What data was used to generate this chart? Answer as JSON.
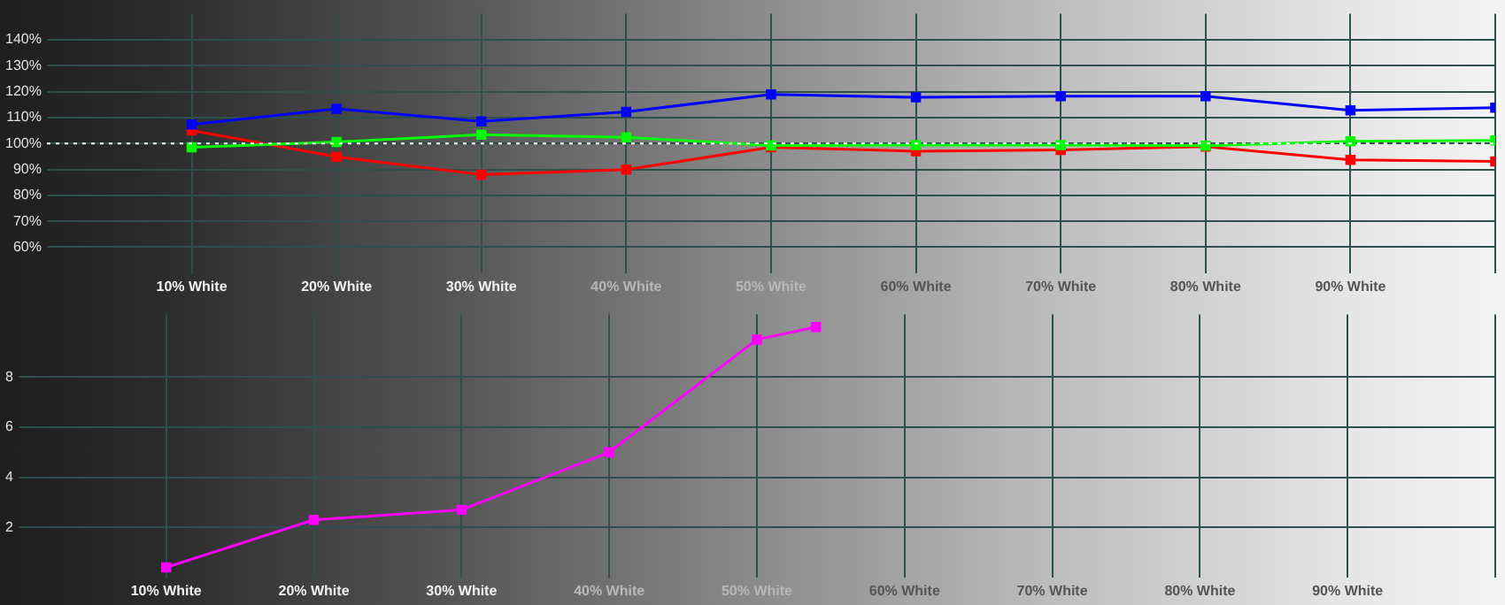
{
  "chart_data": [
    {
      "type": "line",
      "x": [
        10,
        20,
        30,
        40,
        50,
        60,
        70,
        80,
        90,
        100
      ],
      "xlim": [
        0,
        100
      ],
      "xticks": [
        {
          "value": 10,
          "label": "10% White"
        },
        {
          "value": 20,
          "label": "20% White"
        },
        {
          "value": 30,
          "label": "30% White"
        },
        {
          "value": 40,
          "label": "40% White"
        },
        {
          "value": 50,
          "label": "50% White"
        },
        {
          "value": 60,
          "label": "60% White"
        },
        {
          "value": 70,
          "label": "70% White"
        },
        {
          "value": 80,
          "label": "80% White"
        },
        {
          "value": 90,
          "label": "90% White"
        },
        {
          "value": 100,
          "label": null
        }
      ],
      "ylim": [
        50,
        150
      ],
      "yticks": [
        {
          "value": 60,
          "label": "60%"
        },
        {
          "value": 70,
          "label": "70%"
        },
        {
          "value": 80,
          "label": "80%"
        },
        {
          "value": 90,
          "label": "90%"
        },
        {
          "value": 100,
          "label": "100%"
        },
        {
          "value": 110,
          "label": "110%"
        },
        {
          "value": 120,
          "label": "120%"
        },
        {
          "value": 130,
          "label": "130%"
        },
        {
          "value": 140,
          "label": "140%"
        }
      ],
      "series": [
        {
          "color": "#00ff00",
          "values": [
            98.5,
            100.6,
            103.4,
            102.4,
            99.2,
            99.4,
            99.4,
            99.1,
            100.8,
            101.2
          ]
        },
        {
          "color": "#0000ff",
          "values": [
            107.3,
            113.4,
            108.5,
            112.2,
            118.9,
            117.8,
            118.2,
            118.2,
            112.8,
            113.8
          ]
        },
        {
          "color": "#ff0000",
          "values": [
            105,
            94.9,
            88,
            89.9,
            98.5,
            97,
            97.5,
            98.8,
            93.7,
            93.1
          ]
        }
      ],
      "ref_lines": [
        {
          "axis": "y",
          "value": 100,
          "color": "#ffffff",
          "line_style": "dotted"
        }
      ],
      "grid": true,
      "marker": "square",
      "legend": false
    },
    {
      "type": "line",
      "xlim": [
        0,
        100
      ],
      "xticks": [
        {
          "value": 10,
          "label": "10% White"
        },
        {
          "value": 20,
          "label": "20% White"
        },
        {
          "value": 30,
          "label": "30% White"
        },
        {
          "value": 40,
          "label": "40% White"
        },
        {
          "value": 50,
          "label": "50% White"
        },
        {
          "value": 60,
          "label": "60% White"
        },
        {
          "value": 70,
          "label": "70% White"
        },
        {
          "value": 80,
          "label": "80% White"
        },
        {
          "value": 90,
          "label": "90% White"
        },
        {
          "value": 100,
          "label": null
        }
      ],
      "ylim": [
        0,
        10.5
      ],
      "yticks": [
        2,
        4,
        6,
        8
      ],
      "series": [
        {
          "color": "#ff00ff",
          "x": [
            10,
            20,
            30,
            40,
            50,
            54
          ],
          "values": [
            0.4,
            2.3,
            2.7,
            5.0,
            9.5,
            10.0
          ]
        }
      ],
      "grid": true,
      "marker": "square",
      "legend": false
    }
  ]
}
